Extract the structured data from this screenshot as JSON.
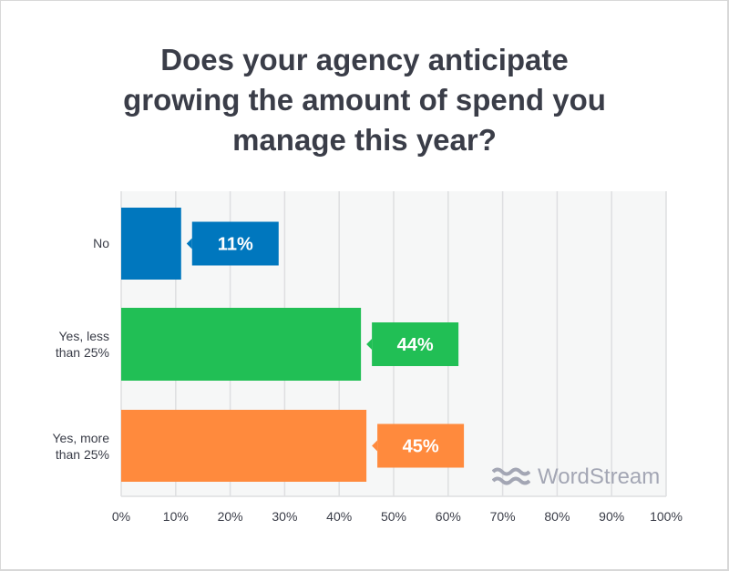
{
  "chart_data": {
    "type": "bar",
    "orientation": "horizontal",
    "title": "Does your agency anticipate growing the amount of spend you manage this year?",
    "title_lines": [
      "Does your agency anticipate",
      "growing the amount of spend you",
      "manage this year?"
    ],
    "categories": [
      "No",
      "Yes, less than 25%",
      "Yes, more than 25%"
    ],
    "category_lines": [
      [
        "No"
      ],
      [
        "Yes, less",
        "than 25%"
      ],
      [
        "Yes, more",
        "than 25%"
      ]
    ],
    "values": [
      11,
      44,
      45
    ],
    "data_labels": [
      "11%",
      "44%",
      "45%"
    ],
    "colors": [
      "#0077be",
      "#21bf55",
      "#ff8a3d"
    ],
    "xlim": [
      0,
      100
    ],
    "xticks": [
      "0%",
      "10%",
      "20%",
      "30%",
      "40%",
      "50%",
      "60%",
      "70%",
      "80%",
      "90%",
      "100%"
    ],
    "grid": true,
    "xlabel": "",
    "ylabel": ""
  },
  "watermark": "WordStream"
}
